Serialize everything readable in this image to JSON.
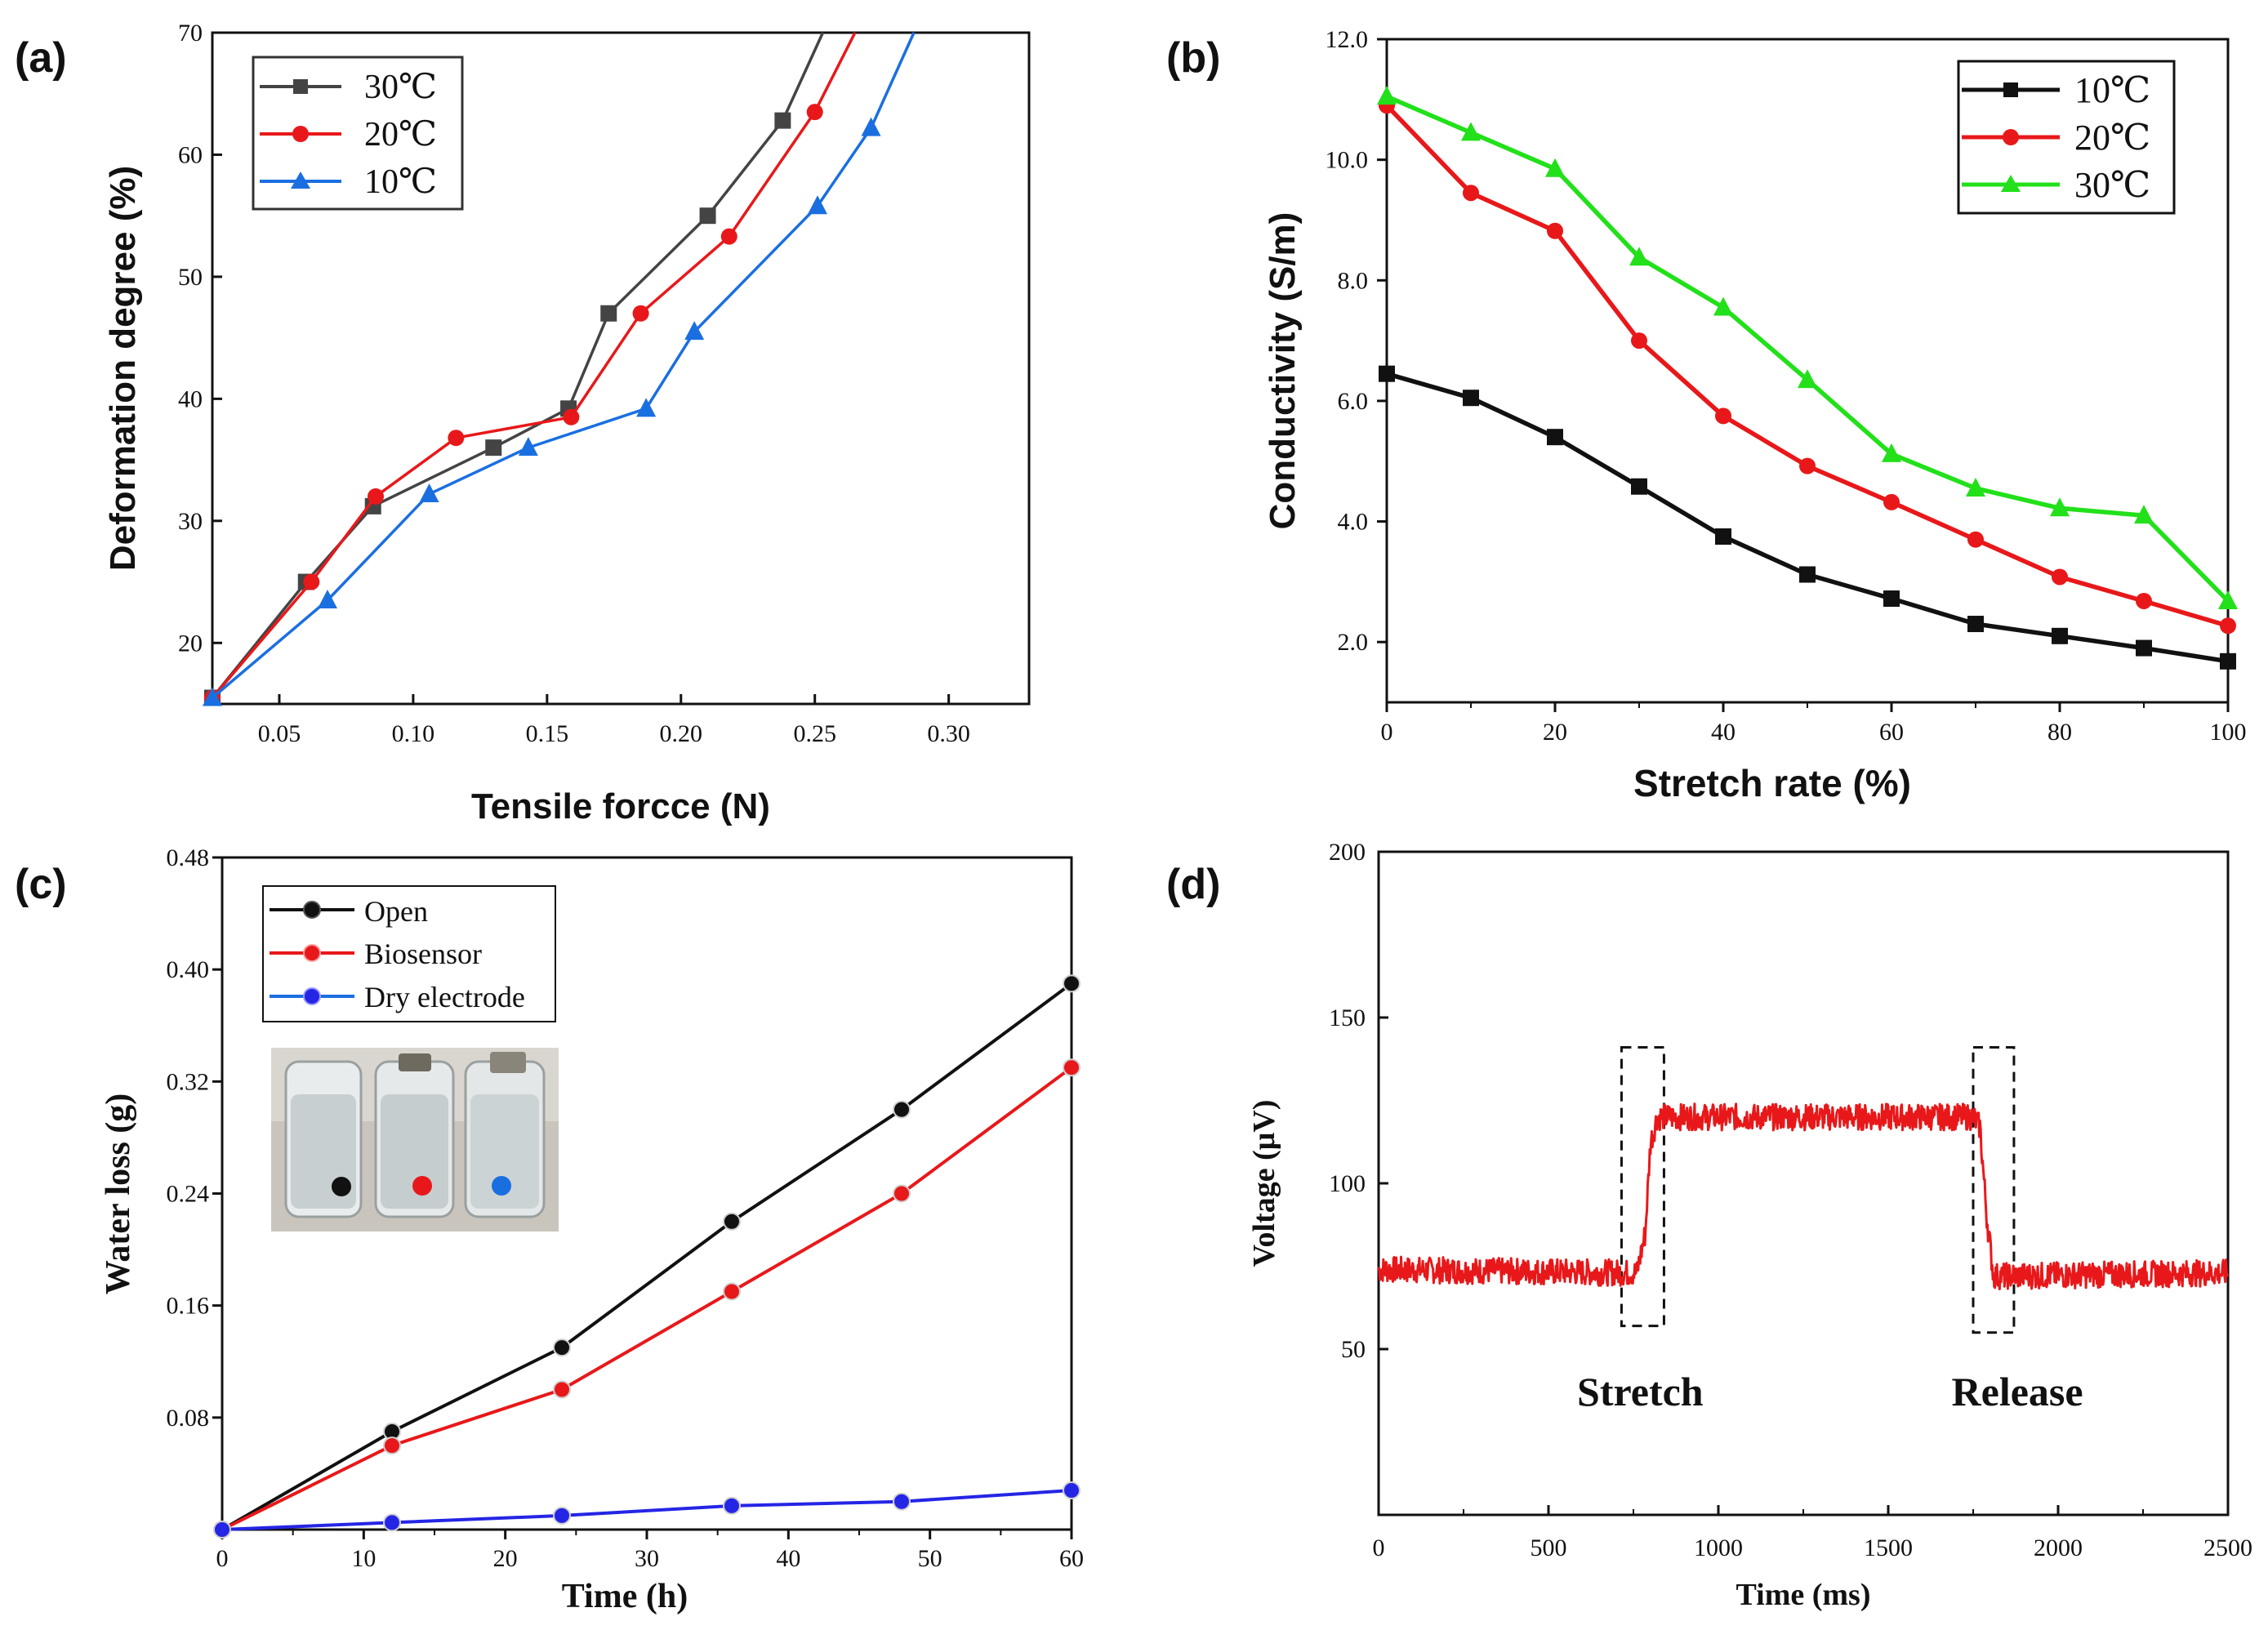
{
  "colors": {
    "black": "#111111",
    "red": "#e8181a",
    "blue": "#1a6fe0",
    "green": "#22e01a",
    "gray": "#444444",
    "ball_black": "#111111",
    "ball_red": "#e8181a",
    "ball_blue": "#2525e6"
  },
  "chart_data": [
    {
      "panel": "(a)",
      "type": "line",
      "xlabel": "Tensile forcce (N)",
      "ylabel": "Deformation degree (%)",
      "xlim": [
        0.025,
        0.33
      ],
      "ylim": [
        15,
        70
      ],
      "xticks": [
        0.05,
        0.1,
        0.15,
        0.2,
        0.25,
        0.3
      ],
      "xtick_labels": [
        "0.05",
        "0.10",
        "0.15",
        "0.20",
        "0.25",
        "0.30"
      ],
      "yticks": [
        20,
        30,
        40,
        50,
        60,
        70
      ],
      "ytick_labels": [
        "20",
        "30",
        "40",
        "50",
        "60",
        "70"
      ],
      "legend": [
        "30℃",
        "20℃",
        "10℃"
      ],
      "series": [
        {
          "name": "30℃",
          "marker": "square",
          "color": "gray",
          "x": [
            0.025,
            0.06,
            0.085,
            0.13,
            0.158,
            0.173,
            0.21,
            0.238,
            0.253
          ],
          "y": [
            15.5,
            25,
            31.2,
            36,
            39.2,
            47,
            55,
            62.8,
            70
          ]
        },
        {
          "name": "20℃",
          "marker": "circle",
          "color": "red",
          "x": [
            0.025,
            0.062,
            0.086,
            0.116,
            0.159,
            0.185,
            0.218,
            0.25,
            0.265
          ],
          "y": [
            15.5,
            25,
            32,
            36.8,
            38.5,
            47,
            53.3,
            63.5,
            70
          ]
        },
        {
          "name": "10℃",
          "marker": "triangle",
          "color": "blue",
          "x": [
            0.025,
            0.068,
            0.106,
            0.143,
            0.187,
            0.205,
            0.251,
            0.271,
            0.287
          ],
          "y": [
            15.5,
            23.5,
            32.2,
            36,
            39.2,
            45.5,
            55.8,
            62.2,
            70
          ]
        }
      ]
    },
    {
      "panel": "(b)",
      "type": "line",
      "xlabel": "Stretch rate (%)",
      "ylabel": "Conductivity (S/m)",
      "xlim": [
        0,
        100
      ],
      "ylim": [
        1,
        12
      ],
      "xticks": [
        0,
        20,
        40,
        60,
        80,
        100
      ],
      "xtick_labels": [
        "0",
        "20",
        "40",
        "60",
        "80",
        "100"
      ],
      "yticks": [
        2,
        4,
        6,
        8,
        10,
        12
      ],
      "ytick_labels": [
        "2.0",
        "4.0",
        "6.0",
        "8.0",
        "10.0",
        "12.0"
      ],
      "legend": [
        "10℃",
        "20℃",
        "30℃"
      ],
      "series": [
        {
          "name": "10℃",
          "marker": "square",
          "color": "black",
          "x": [
            0,
            10,
            20,
            30,
            40,
            50,
            60,
            70,
            80,
            90,
            100
          ],
          "y": [
            6.45,
            6.05,
            5.4,
            4.58,
            3.75,
            3.12,
            2.72,
            2.3,
            2.1,
            1.9,
            1.68
          ]
        },
        {
          "name": "20℃",
          "marker": "circle",
          "color": "red",
          "x": [
            0,
            10,
            20,
            30,
            40,
            50,
            60,
            70,
            80,
            90,
            100
          ],
          "y": [
            10.9,
            9.45,
            8.82,
            7.0,
            5.75,
            4.92,
            4.32,
            3.7,
            3.08,
            2.68,
            2.27
          ]
        },
        {
          "name": "30℃",
          "marker": "triangle",
          "color": "green",
          "x": [
            0,
            10,
            20,
            30,
            40,
            50,
            60,
            70,
            80,
            90,
            100
          ],
          "y": [
            11.05,
            10.45,
            9.85,
            8.38,
            7.55,
            6.35,
            5.12,
            4.55,
            4.22,
            4.1,
            2.68
          ]
        }
      ]
    },
    {
      "panel": "(c)",
      "type": "line",
      "xlabel": "Time (h)",
      "ylabel": "Water loss (g)",
      "xlim": [
        0,
        60
      ],
      "ylim": [
        0,
        0.48
      ],
      "xticks": [
        0,
        10,
        20,
        30,
        40,
        50,
        60
      ],
      "xtick_labels": [
        "0",
        "10",
        "20",
        "30",
        "40",
        "50",
        "60"
      ],
      "yticks": [
        0.08,
        0.16,
        0.24,
        0.32,
        0.4,
        0.48
      ],
      "ytick_labels": [
        "0.08",
        "0.16",
        "0.24",
        "0.32",
        "0.40",
        "0.48"
      ],
      "legend": [
        "Open",
        "Biosensor",
        "Dry electrode"
      ],
      "series": [
        {
          "name": "Open",
          "marker": "ball",
          "color": "ball_black",
          "x": [
            0,
            12,
            24,
            36,
            48,
            60
          ],
          "y": [
            0,
            0.07,
            0.13,
            0.22,
            0.3,
            0.39
          ]
        },
        {
          "name": "Biosensor",
          "marker": "ball",
          "color": "ball_red",
          "x": [
            0,
            12,
            24,
            36,
            48,
            60
          ],
          "y": [
            0,
            0.06,
            0.1,
            0.17,
            0.24,
            0.33
          ]
        },
        {
          "name": "Dry electrode",
          "marker": "ball",
          "color": "ball_blue",
          "x": [
            0,
            12,
            24,
            36,
            48,
            60
          ],
          "y": [
            0,
            0.005,
            0.01,
            0.017,
            0.02,
            0.028
          ]
        }
      ],
      "inset": "photo of three glass vials with black, red and blue dots"
    },
    {
      "panel": "(d)",
      "type": "line",
      "xlabel": "Time (ms)",
      "ylabel": "Voltage (μV)",
      "xlim": [
        0,
        2500
      ],
      "ylim": [
        0,
        200
      ],
      "xticks": [
        0,
        500,
        1000,
        1500,
        2000,
        2500
      ],
      "xtick_labels": [
        "0",
        "500",
        "1000",
        "1500",
        "2000",
        "2500"
      ],
      "yticks": [
        50,
        100,
        150,
        200
      ],
      "ytick_labels": [
        "50",
        "100",
        "150",
        "200"
      ],
      "series": [
        {
          "name": "signal",
          "color": "red",
          "x": [
            0,
            760,
            785,
            800,
            820,
            1750,
            1770,
            1790,
            1810,
            2500
          ],
          "y": [
            74,
            73,
            85,
            112,
            120,
            120,
            117,
            90,
            72,
            73
          ],
          "noise_amplitude": 4
        }
      ],
      "annotations": [
        {
          "text": "Stretch",
          "x": 770,
          "y": 33
        },
        {
          "text": "Release",
          "x": 1880,
          "y": 33
        }
      ],
      "boxes": [
        {
          "x0": 715,
          "x1": 840,
          "y0": 57,
          "y1": 141
        },
        {
          "x0": 1750,
          "x1": 1870,
          "y0": 55,
          "y1": 141
        }
      ]
    }
  ]
}
